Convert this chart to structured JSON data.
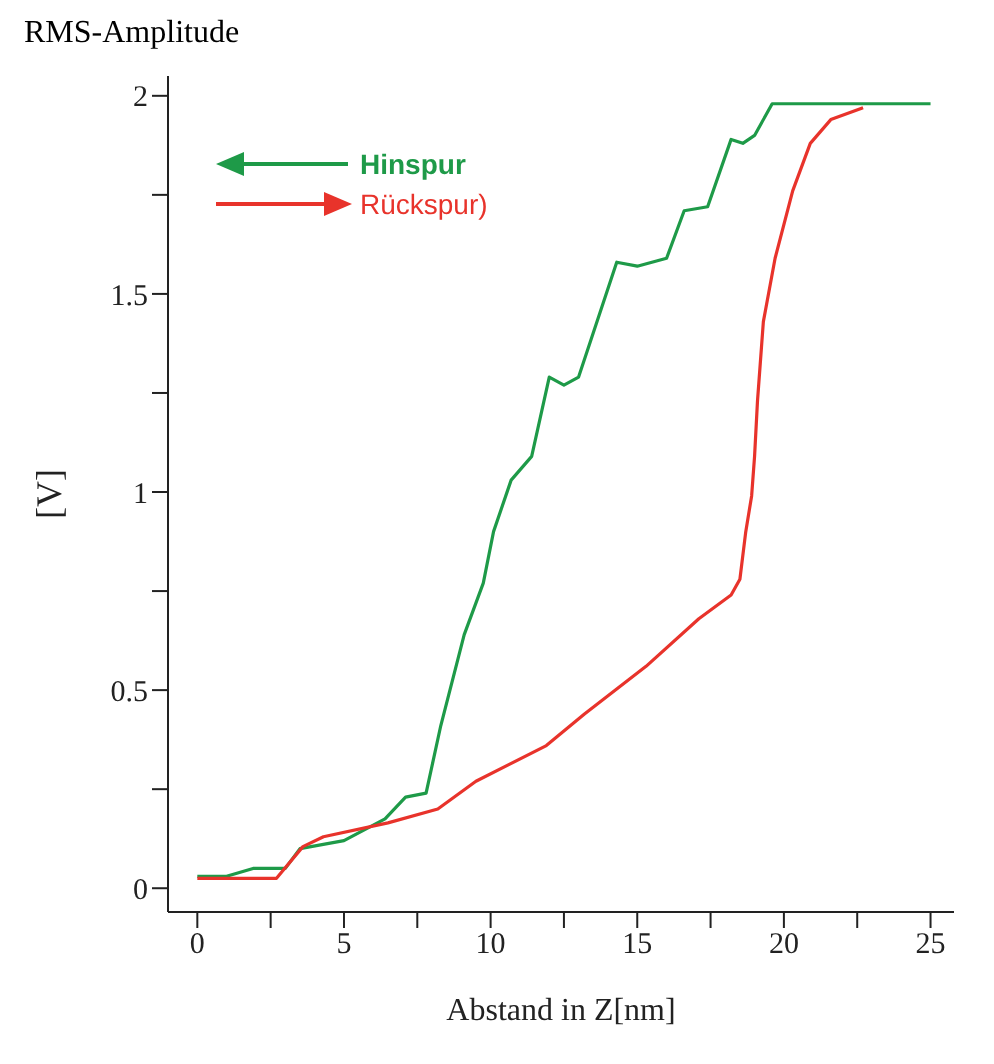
{
  "chart_data": {
    "type": "line",
    "title": "RMS-Amplitude",
    "xlabel": "Abstand in Z[nm]",
    "ylabel": "[V]",
    "xlim": [
      -1,
      25.8
    ],
    "ylim": [
      -0.06,
      2.05
    ],
    "xticks": [
      0,
      {
        "value": 2.5,
        "label": null
      },
      5,
      {
        "value": 7.5,
        "label": null
      },
      10,
      {
        "value": 12.5,
        "label": null
      },
      15,
      {
        "value": 17.5,
        "label": null
      },
      20,
      {
        "value": 22.5,
        "label": null
      },
      25
    ],
    "yticks": [
      0,
      {
        "value": 0.25,
        "label": null
      },
      0.5,
      {
        "value": 0.75,
        "label": null
      },
      1,
      {
        "value": 1.25,
        "label": null
      },
      1.5,
      {
        "value": 1.75,
        "label": null
      },
      2
    ],
    "grid": false,
    "legend": "top left",
    "marker": "none",
    "line_style": "solid",
    "series": [
      {
        "name": "Hinspur",
        "color": "#1e9a48",
        "x": [
          0,
          1,
          1.9,
          3,
          3.5,
          5,
          6.4,
          7.1,
          7.8,
          8.3,
          9.1,
          9.75,
          10.1,
          10.7,
          11.4,
          12,
          12.5,
          13,
          14.3,
          15,
          16,
          16.6,
          17.4,
          18.2,
          18.6,
          19,
          19.6,
          25
        ],
        "values": [
          0.03,
          0.03,
          0.05,
          0.05,
          0.1,
          0.12,
          0.175,
          0.23,
          0.24,
          0.41,
          0.64,
          0.77,
          0.9,
          1.03,
          1.09,
          1.29,
          1.27,
          1.29,
          1.58,
          1.57,
          1.59,
          1.71,
          1.72,
          1.89,
          1.88,
          1.9,
          1.98,
          1.98
        ]
      },
      {
        "name": "Rückspur)",
        "color": "#e8332b",
        "x": [
          0,
          2.7,
          3.6,
          4.3,
          6.5,
          8.2,
          9.5,
          11.9,
          13.2,
          15.3,
          17.1,
          18.2,
          18.5,
          18.7,
          18.9,
          19,
          19.1,
          19.3,
          19.7,
          20.3,
          20.9,
          21.6,
          22.7
        ],
        "values": [
          0.025,
          0.025,
          0.105,
          0.13,
          0.165,
          0.2,
          0.27,
          0.36,
          0.44,
          0.56,
          0.68,
          0.74,
          0.78,
          0.9,
          0.99,
          1.09,
          1.23,
          1.43,
          1.59,
          1.76,
          1.88,
          1.94,
          1.97
        ]
      }
    ]
  }
}
